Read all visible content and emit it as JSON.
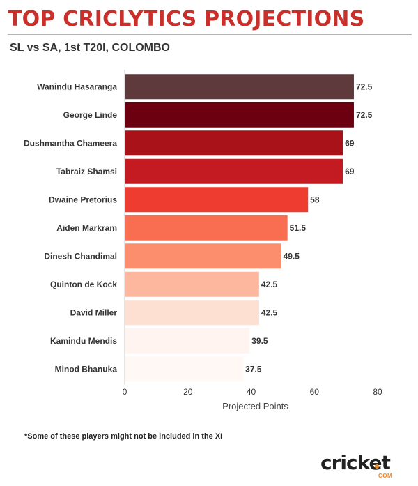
{
  "header": {
    "title": "TOP CRICLYTICS PROJECTIONS",
    "subtitle": "SL vs SA, 1st T20I, COLOMBO"
  },
  "chart_data": {
    "type": "bar",
    "orientation": "horizontal",
    "categories": [
      "Wanindu Hasaranga",
      "George Linde",
      "Dushmantha Chameera",
      "Tabraiz Shamsi",
      "Dwaine Pretorius",
      "Aiden Markram",
      "Dinesh Chandimal",
      "Quinton de Kock",
      "David Miller",
      "Kamindu Mendis",
      "Minod Bhanuka"
    ],
    "values": [
      72.5,
      72.5,
      69,
      69,
      58,
      51.5,
      49.5,
      42.5,
      42.5,
      39.5,
      37.5
    ],
    "value_labels": [
      "72.5",
      "72.5",
      "69",
      "69",
      "58",
      "51.5",
      "49.5",
      "42.5",
      "42.5",
      "39.5",
      "37.5"
    ],
    "colors": [
      "#5e3a3c",
      "#6d0010",
      "#a81218",
      "#c41b22",
      "#ef3c30",
      "#f96d50",
      "#fc8e6e",
      "#fdb79f",
      "#fde0d2",
      "#fff4ef",
      "#fff8f4"
    ],
    "xlabel": "Projected Points",
    "ylabel": "",
    "xlim": [
      0,
      80
    ],
    "xticks": [
      0,
      20,
      40,
      60,
      80
    ],
    "grid": false,
    "legend": "none"
  },
  "footnote": "*Some of these players might not be included in the XI",
  "logo": {
    "word": "cricket",
    "sub": "COM"
  }
}
